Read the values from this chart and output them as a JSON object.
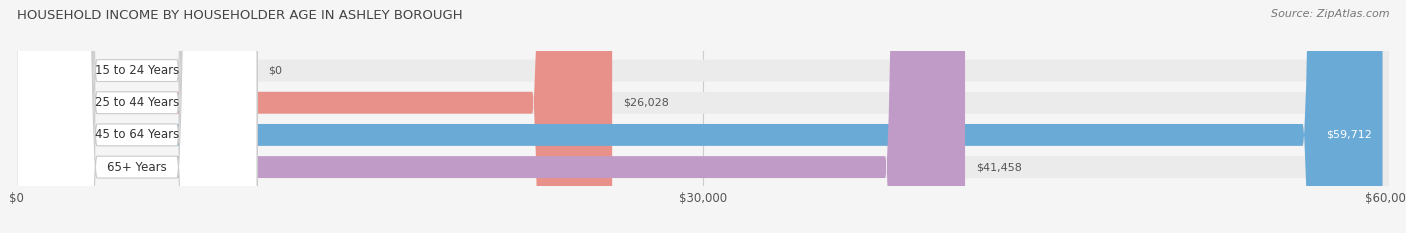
{
  "title": "HOUSEHOLD INCOME BY HOUSEHOLDER AGE IN ASHLEY BOROUGH",
  "source": "Source: ZipAtlas.com",
  "categories": [
    "15 to 24 Years",
    "25 to 44 Years",
    "45 to 64 Years",
    "65+ Years"
  ],
  "values": [
    0,
    26028,
    59712,
    41458
  ],
  "bar_colors": [
    "#f5c898",
    "#e8918a",
    "#6aaad6",
    "#c09bc8"
  ],
  "xlim": [
    0,
    60000
  ],
  "xticks": [
    0,
    30000,
    60000
  ],
  "xtick_labels": [
    "$0",
    "$30,000",
    "$60,000"
  ],
  "figsize": [
    14.06,
    2.33
  ],
  "dpi": 100,
  "bg_bar_color": "#ebebeb",
  "label_box_color": "#ffffff",
  "fig_bg": "#f5f5f5",
  "title_fontsize": 9.5,
  "source_fontsize": 8,
  "label_fontsize": 8.5,
  "value_fontsize": 8
}
